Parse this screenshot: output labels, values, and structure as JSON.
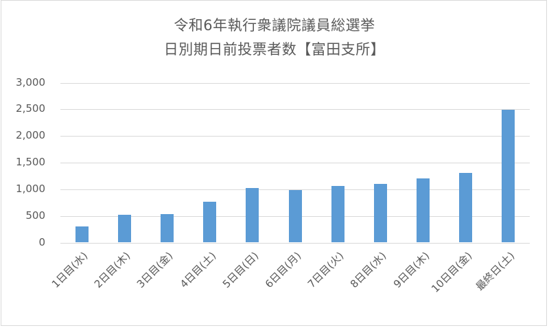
{
  "chart_data": {
    "type": "bar",
    "title": "令和6年執行衆議院議員総選挙 日別期日前投票者数【富田支所】",
    "title_lines": [
      "令和6年執行衆議院議員総選挙",
      "日別期日前投票者数【富田支所】"
    ],
    "categories": [
      "1日目(水)",
      "2日目(木)",
      "3日目(金)",
      "4日目(土)",
      "5日目(日)",
      "6日目(月)",
      "7日目(火)",
      "8日目(水)",
      "9日目(木)",
      "10日目(金)",
      "最終日(土)"
    ],
    "values": [
      300,
      520,
      540,
      760,
      1030,
      990,
      1060,
      1100,
      1200,
      1310,
      2490
    ],
    "xlabel": "",
    "ylabel": "",
    "ylim": [
      0,
      3000
    ],
    "yticks": [
      "0",
      "500",
      "1,000",
      "1,500",
      "2,000",
      "2,500",
      "3,000"
    ],
    "grid": true,
    "legend": "none",
    "bar_color": "#5b9bd5"
  }
}
